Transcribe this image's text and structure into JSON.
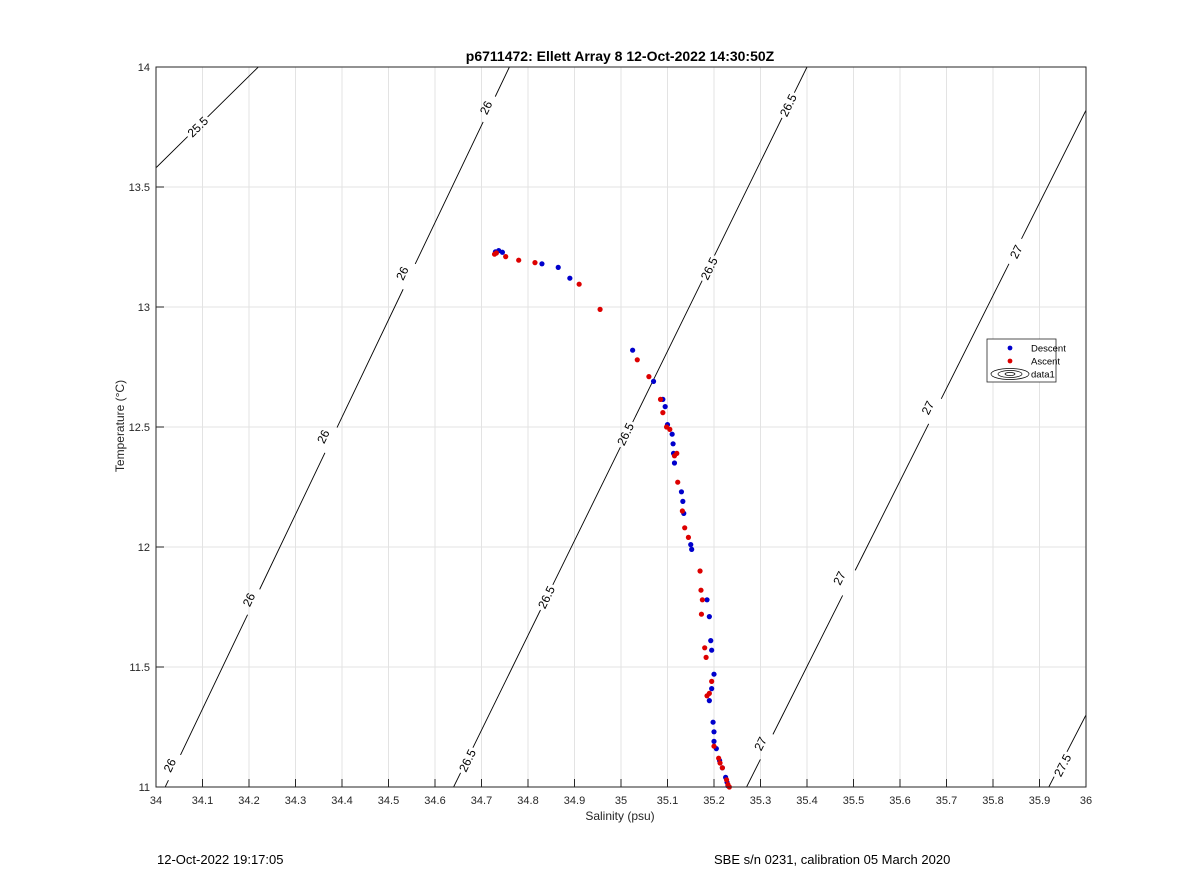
{
  "chart_data": {
    "type": "scatter",
    "title": "p6711472: Ellett Array 8 12-Oct-2022 14:30:50Z",
    "xlabel": "Salinity (psu)",
    "ylabel": "Temperature (°C)",
    "xlim": [
      34,
      36
    ],
    "ylim": [
      11,
      14
    ],
    "xticks": [
      34,
      34.1,
      34.2,
      34.3,
      34.4,
      34.5,
      34.6,
      34.7,
      34.8,
      34.9,
      35,
      35.1,
      35.2,
      35.3,
      35.4,
      35.5,
      35.6,
      35.7,
      35.8,
      35.9,
      36
    ],
    "xtick_labels": [
      "34",
      "34.1",
      "34.2",
      "34.3",
      "34.4",
      "34.5",
      "34.6",
      "34.7",
      "34.8",
      "34.9",
      "35",
      "35.1",
      "35.2",
      "35.3",
      "35.4",
      "35.5",
      "35.6",
      "35.7",
      "35.8",
      "35.9",
      "36"
    ],
    "yticks": [
      11,
      11.5,
      12,
      12.5,
      13,
      13.5,
      14
    ],
    "ytick_labels": [
      "11",
      "11.5",
      "12",
      "12.5",
      "13",
      "13.5",
      "14"
    ],
    "grid": true,
    "legend_position": "right",
    "legend": [
      {
        "label": "Descent",
        "color": "#0000cc",
        "symbol": "dot"
      },
      {
        "label": "Ascent",
        "color": "#dd0000",
        "symbol": "dot"
      },
      {
        "label": "data1",
        "color": "#000000",
        "symbol": "contour"
      }
    ],
    "series": [
      {
        "name": "Descent",
        "color": "#0000cc",
        "points": [
          [
            34.73,
            13.23
          ],
          [
            34.737,
            13.235
          ],
          [
            34.745,
            13.228
          ],
          [
            34.83,
            13.18
          ],
          [
            34.865,
            13.165
          ],
          [
            34.89,
            13.12
          ],
          [
            35.025,
            12.82
          ],
          [
            35.07,
            12.69
          ],
          [
            35.09,
            12.615
          ],
          [
            35.095,
            12.585
          ],
          [
            35.1,
            12.51
          ],
          [
            35.11,
            12.47
          ],
          [
            35.112,
            12.43
          ],
          [
            35.113,
            12.39
          ],
          [
            35.115,
            12.35
          ],
          [
            35.13,
            12.23
          ],
          [
            35.133,
            12.19
          ],
          [
            35.135,
            12.14
          ],
          [
            35.15,
            12.01
          ],
          [
            35.152,
            11.99
          ],
          [
            35.185,
            11.78
          ],
          [
            35.19,
            11.71
          ],
          [
            35.193,
            11.61
          ],
          [
            35.195,
            11.57
          ],
          [
            35.2,
            11.47
          ],
          [
            35.195,
            11.41
          ],
          [
            35.19,
            11.36
          ],
          [
            35.198,
            11.27
          ],
          [
            35.2,
            11.23
          ],
          [
            35.2,
            11.19
          ],
          [
            35.205,
            11.16
          ],
          [
            35.212,
            11.11
          ],
          [
            35.218,
            11.08
          ],
          [
            35.225,
            11.04
          ],
          [
            35.228,
            11.02
          ],
          [
            35.23,
            11.005
          ]
        ]
      },
      {
        "name": "Ascent",
        "color": "#dd0000",
        "points": [
          [
            34.728,
            13.22
          ],
          [
            34.732,
            13.225
          ],
          [
            34.752,
            13.21
          ],
          [
            34.78,
            13.195
          ],
          [
            34.815,
            13.185
          ],
          [
            34.91,
            13.095
          ],
          [
            34.955,
            12.99
          ],
          [
            35.035,
            12.78
          ],
          [
            35.06,
            12.71
          ],
          [
            35.085,
            12.615
          ],
          [
            35.09,
            12.56
          ],
          [
            35.098,
            12.5
          ],
          [
            35.105,
            12.49
          ],
          [
            35.115,
            12.38
          ],
          [
            35.12,
            12.39
          ],
          [
            35.122,
            12.27
          ],
          [
            35.132,
            12.15
          ],
          [
            35.137,
            12.08
          ],
          [
            35.145,
            12.04
          ],
          [
            35.17,
            11.9
          ],
          [
            35.172,
            11.82
          ],
          [
            35.175,
            11.78
          ],
          [
            35.173,
            11.72
          ],
          [
            35.18,
            11.58
          ],
          [
            35.183,
            11.54
          ],
          [
            35.195,
            11.44
          ],
          [
            35.19,
            11.39
          ],
          [
            35.185,
            11.38
          ],
          [
            35.2,
            11.17
          ],
          [
            35.21,
            11.12
          ],
          [
            35.213,
            11.1
          ],
          [
            35.218,
            11.08
          ],
          [
            35.227,
            11.03
          ],
          [
            35.23,
            11.01
          ],
          [
            35.233,
            11.0
          ]
        ]
      }
    ],
    "isopycnals": [
      {
        "label": "25.5",
        "from": [
          34.0,
          13.58
        ],
        "to": [
          34.22,
          14.0
        ],
        "label_at": [
          [
            34.09,
            13.75
          ]
        ]
      },
      {
        "label": "26",
        "from": [
          34.0,
          10.92
        ],
        "to": [
          34.76,
          14.0
        ],
        "label_at": [
          [
            34.03,
            11.09
          ],
          [
            34.2,
            11.78
          ],
          [
            34.36,
            12.46
          ],
          [
            34.53,
            13.14
          ],
          [
            34.71,
            13.83
          ]
        ]
      },
      {
        "label": "26.5",
        "from": [
          34.64,
          11.0
        ],
        "to": [
          35.4,
          14.0
        ],
        "label_at": [
          [
            34.67,
            11.11
          ],
          [
            34.84,
            11.79
          ],
          [
            35.01,
            12.47
          ],
          [
            35.19,
            13.16
          ],
          [
            35.36,
            13.84
          ]
        ]
      },
      {
        "label": "27",
        "from": [
          35.27,
          11.0
        ],
        "to": [
          36.0,
          13.82
        ],
        "label_at": [
          [
            35.3,
            11.18
          ],
          [
            35.47,
            11.87
          ],
          [
            35.66,
            12.58
          ],
          [
            35.85,
            13.23
          ]
        ]
      },
      {
        "label": "27.5",
        "from": [
          35.92,
          11.0
        ],
        "to": [
          36.0,
          11.3
        ],
        "label_at": [
          [
            35.95,
            11.09
          ]
        ]
      }
    ]
  },
  "footer": {
    "left": "12-Oct-2022 19:17:05",
    "right": "SBE s/n 0231, calibration 05 March 2020"
  }
}
